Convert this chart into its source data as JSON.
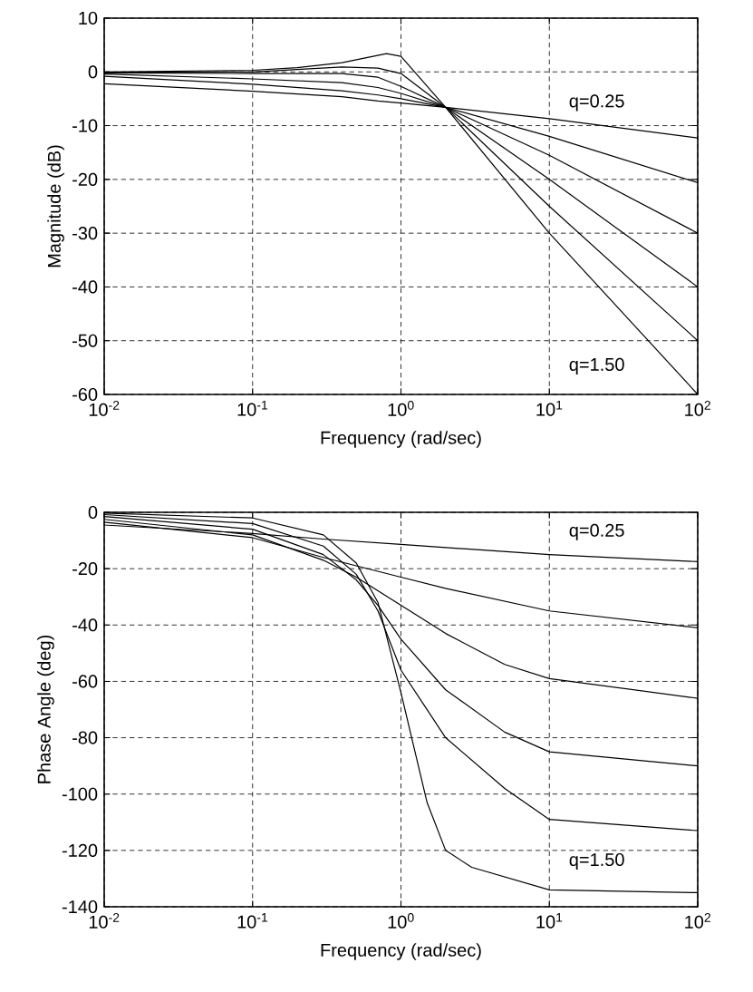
{
  "chart_data": [
    {
      "type": "line",
      "xlabel": "Frequency  (rad/sec)",
      "ylabel": "Magnitude  (dB)",
      "log": "x",
      "grid": true,
      "line_style": "solid",
      "xlim": [
        0.01,
        100
      ],
      "ylim": [
        -60,
        10
      ],
      "xticks": [
        {
          "value": 0.01,
          "label": "10$^{-2}$"
        },
        {
          "value": 0.1,
          "label": "10$^{-1}$"
        },
        {
          "value": 1,
          "label": "10$^{0}$"
        },
        {
          "value": 10,
          "label": "10$^{1}$"
        },
        {
          "value": 100,
          "label": "10$^{2}$"
        }
      ],
      "yticks": [
        -60,
        -50,
        -40,
        -30,
        -20,
        -10,
        0,
        10
      ],
      "series": [
        {
          "color": "#000000",
          "x": [
            0.01,
            0.1,
            0.4,
            0.7,
            1,
            2,
            10,
            100
          ],
          "values": [
            -2.2,
            -3.6,
            -4.6,
            -5.4,
            -5.8,
            -6.6,
            -8.7,
            -12.3
          ]
        },
        {
          "color": "#000000",
          "x": [
            0.01,
            0.1,
            0.4,
            0.7,
            1,
            2,
            10,
            100
          ],
          "values": [
            -0.8,
            -2.3,
            -3.5,
            -4.3,
            -5,
            -6.6,
            -12,
            -20.6
          ]
        },
        {
          "color": "#000000",
          "x": [
            0.01,
            0.1,
            0.4,
            0.7,
            1,
            2,
            10,
            100
          ],
          "values": [
            -0.4,
            -1.3,
            -2,
            -2.9,
            -4,
            -6.6,
            -15.5,
            -30
          ]
        },
        {
          "color": "#000000",
          "x": [
            0.01,
            0.1,
            0.4,
            0.7,
            1,
            2,
            10,
            100
          ],
          "values": [
            -0.2,
            -0.3,
            -0.3,
            -1,
            -2.7,
            -6.6,
            -20,
            -40
          ]
        },
        {
          "color": "#000000",
          "x": [
            0.01,
            0.1,
            0.4,
            0.7,
            1,
            2,
            10,
            100
          ],
          "values": [
            -0.1,
            0,
            0.9,
            0.7,
            -0.3,
            -6.6,
            -25,
            -50
          ]
        },
        {
          "color": "#000000",
          "x": [
            0.01,
            0.1,
            0.2,
            0.4,
            0.8,
            1,
            2,
            10,
            100
          ],
          "values": [
            0,
            0.3,
            0.8,
            1.7,
            3.4,
            2.9,
            -6.6,
            -30,
            -60
          ]
        }
      ],
      "annotations": [
        "q=0.25",
        "q=1.50"
      ]
    },
    {
      "type": "line",
      "xlabel": "Frequency  (rad/sec)",
      "ylabel": "Phase Angle  (deg)",
      "log": "x",
      "grid": true,
      "line_style": "solid",
      "xlim": [
        0.01,
        100
      ],
      "ylim": [
        -140,
        0
      ],
      "xticks": [
        {
          "value": 0.01,
          "label": "10$^{-2}$"
        },
        {
          "value": 0.1,
          "label": "10$^{-1}$"
        },
        {
          "value": 1,
          "label": "10$^{0}$"
        },
        {
          "value": 10,
          "label": "10$^{1}$"
        },
        {
          "value": 100,
          "label": "10$^{2}$"
        }
      ],
      "yticks": [
        -140,
        -120,
        -100,
        -80,
        -60,
        -40,
        -20,
        0
      ],
      "series": [
        {
          "color": "#000000",
          "x": [
            0.01,
            0.1,
            0.3,
            1,
            10,
            100
          ],
          "values": [
            -4.5,
            -7.5,
            -9.5,
            -11.4,
            -15,
            -17.5
          ]
        },
        {
          "color": "#000000",
          "x": [
            0.01,
            0.1,
            0.3,
            0.5,
            1,
            2,
            10,
            100
          ],
          "values": [
            -3.5,
            -9,
            -16,
            -19,
            -23,
            -27,
            -35,
            -41
          ]
        },
        {
          "color": "#000000",
          "x": [
            0.01,
            0.1,
            0.3,
            0.5,
            1,
            2,
            5,
            10,
            100
          ],
          "values": [
            -2.5,
            -8,
            -17,
            -23,
            -33,
            -43,
            -54,
            -59,
            -66
          ]
        },
        {
          "color": "#000000",
          "x": [
            0.01,
            0.1,
            0.3,
            0.5,
            0.7,
            1,
            2,
            5,
            10,
            100
          ],
          "values": [
            -1.5,
            -6,
            -15,
            -24,
            -33,
            -45,
            -63,
            -78,
            -85,
            -90
          ]
        },
        {
          "color": "#000000",
          "x": [
            0.01,
            0.1,
            0.3,
            0.5,
            0.7,
            1,
            2,
            5,
            10,
            100
          ],
          "values": [
            -0.8,
            -4,
            -12,
            -22,
            -35,
            -56,
            -80,
            -98,
            -109,
            -113
          ]
        },
        {
          "color": "#000000",
          "x": [
            0.01,
            0.1,
            0.3,
            0.5,
            0.7,
            1,
            1.5,
            2,
            3,
            10,
            100
          ],
          "values": [
            -0.3,
            -2,
            -8,
            -18,
            -32,
            -64,
            -103,
            -120,
            -126,
            -134,
            -135
          ]
        }
      ],
      "annotations": [
        "q=0.25",
        "q=1.50"
      ]
    }
  ]
}
